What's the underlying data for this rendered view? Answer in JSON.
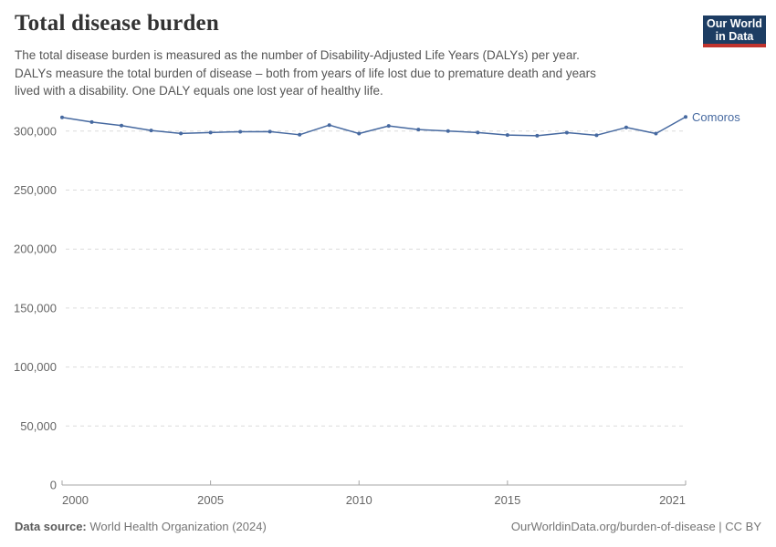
{
  "header": {
    "title": "Total disease burden",
    "subtitle_lines": [
      "The total disease burden is measured as the number of Disability-Adjusted Life Years (DALYs) per year.",
      "DALYs measure the total burden of disease – both from years of life lost due to premature death and years",
      "lived with a disability. One DALY equals one lost year of healthy life."
    ],
    "logo": {
      "line1": "Our World",
      "line2": "in Data",
      "bg_color": "#1d3d63",
      "accent_color": "#c0332d"
    }
  },
  "chart_data": {
    "type": "line",
    "title": "Total disease burden",
    "xlabel": "",
    "ylabel": "",
    "x": [
      2000,
      2001,
      2002,
      2003,
      2004,
      2005,
      2006,
      2007,
      2008,
      2009,
      2010,
      2011,
      2012,
      2013,
      2014,
      2015,
      2016,
      2017,
      2018,
      2019,
      2020,
      2021
    ],
    "series": [
      {
        "name": "Comoros",
        "color": "#4669a0",
        "values": [
          311600,
          307700,
          304700,
          300500,
          298000,
          298800,
          299500,
          299600,
          296900,
          305100,
          297900,
          304400,
          301300,
          300000,
          298800,
          296700,
          296100,
          298700,
          296500,
          303100,
          297900,
          312000
        ]
      }
    ],
    "xlim": [
      2000,
      2021
    ],
    "ylim": [
      0,
      315000
    ],
    "xticks": [
      {
        "value": 2000,
        "label": "2000"
      },
      {
        "value": 2005,
        "label": "2005"
      },
      {
        "value": 2010,
        "label": "2010"
      },
      {
        "value": 2015,
        "label": "2015"
      },
      {
        "value": 2021,
        "label": "2021"
      }
    ],
    "yticks": [
      {
        "value": 0,
        "label": "0"
      },
      {
        "value": 50000,
        "label": "50,000"
      },
      {
        "value": 100000,
        "label": "100,000"
      },
      {
        "value": 150000,
        "label": "150,000"
      },
      {
        "value": 200000,
        "label": "200,000"
      },
      {
        "value": 250000,
        "label": "250,000"
      },
      {
        "value": 300000,
        "label": "300,000"
      }
    ],
    "grid": "horizontal dashed",
    "legend": "entity label at line end",
    "colors": {
      "gridline": "#dcdcdc",
      "axis": "#a5a5a5",
      "tick_text": "#666666"
    }
  },
  "footer": {
    "source_label": "Data source:",
    "source_value": " World Health Organization (2024)",
    "credit": "OurWorldinData.org/burden-of-disease | CC BY"
  }
}
